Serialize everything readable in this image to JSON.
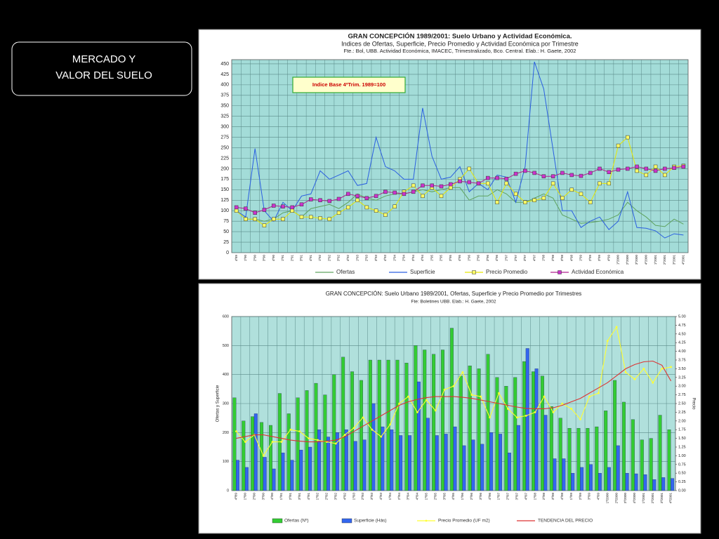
{
  "heading": {
    "lines": [
      "MERCADO Y",
      "VALOR DEL SUELO"
    ]
  },
  "chart_data": [
    {
      "type": "line",
      "title": "GRAN CONCEPCIÓN 1989/2001: Suelo Urbano y Actividad Económica.",
      "subtitle": "Indices de Ofertas, Superficie, Precio Promedio y Actividad Económica por Trimestre",
      "source": "Fte.: Bol, UBB.  Actividad Económica, IMACEC, Trimestralizado, Bco. Central.  Elab.: H. Gaete, 2002",
      "annotation": "Indice Base 4ºTrim. 1989=100",
      "categories": [
        "4º89",
        "1º90",
        "2º90",
        "3º90",
        "4º90",
        "1º91",
        "2º91",
        "3º91",
        "4º91",
        "1º92",
        "2º92",
        "3º92",
        "4º92",
        "1º93",
        "2º93",
        "3º93",
        "4º93",
        "1º94",
        "2º94",
        "3º94",
        "4º94",
        "1º95",
        "2º95",
        "3º95",
        "4º95",
        "1º96",
        "2º96",
        "3º96",
        "4º96",
        "1º97",
        "2º97",
        "3º97",
        "4º97",
        "1º98",
        "2º98",
        "3º98",
        "4º98",
        "1º99",
        "2º99",
        "3º99",
        "4º99",
        "1º2000",
        "2º2000",
        "3º2000",
        "4º2000",
        "1º2001",
        "2º2001",
        "3º2001",
        "4º2001"
      ],
      "ylim": [
        0,
        460
      ],
      "yticks": [
        0,
        25,
        50,
        75,
        100,
        125,
        150,
        175,
        200,
        225,
        250,
        275,
        300,
        325,
        350,
        375,
        400,
        425,
        450
      ],
      "grid": true,
      "legend": "bottom",
      "series": [
        {
          "name": "Ofertas",
          "color": "#5fa35f",
          "values": [
            100,
            80,
            80,
            75,
            80,
            95,
            100,
            85,
            105,
            110,
            115,
            105,
            120,
            140,
            130,
            125,
            135,
            140,
            140,
            145,
            150,
            145,
            150,
            155,
            155,
            125,
            135,
            135,
            150,
            140,
            120,
            120,
            130,
            140,
            130,
            90,
            80,
            70,
            72,
            75,
            80,
            90,
            120,
            100,
            85,
            65,
            62,
            80,
            68
          ]
        },
        {
          "name": "Superficie",
          "color": "#2a5ee0",
          "values": [
            100,
            85,
            248,
            100,
            75,
            120,
            100,
            135,
            140,
            195,
            175,
            185,
            195,
            160,
            165,
            275,
            205,
            195,
            175,
            175,
            345,
            230,
            175,
            180,
            205,
            145,
            165,
            150,
            185,
            180,
            120,
            205,
            455,
            390,
            245,
            100,
            100,
            60,
            75,
            85,
            55,
            75,
            145,
            60,
            58,
            52,
            35,
            45,
            42
          ]
        },
        {
          "name": "Precio Promedio",
          "color": "#e8e800",
          "marker": "square",
          "marker_fill": "#ffff66",
          "values": [
            100,
            80,
            80,
            65,
            80,
            80,
            100,
            85,
            85,
            82,
            80,
            95,
            108,
            125,
            108,
            100,
            90,
            110,
            145,
            160,
            135,
            155,
            135,
            155,
            175,
            200,
            165,
            165,
            120,
            165,
            140,
            120,
            125,
            130,
            165,
            130,
            150,
            140,
            120,
            165,
            165,
            255,
            275,
            195,
            185,
            205,
            185,
            205,
            207
          ]
        },
        {
          "name": "Actividad Económica",
          "color": "#b0208f",
          "marker": "square",
          "marker_fill": "#cc33cc",
          "values": [
            108,
            105,
            95,
            102,
            112,
            110,
            108,
            115,
            127,
            125,
            123,
            128,
            140,
            135,
            130,
            135,
            145,
            143,
            140,
            145,
            160,
            160,
            158,
            163,
            170,
            168,
            165,
            178,
            178,
            176,
            188,
            195,
            190,
            182,
            182,
            190,
            185,
            183,
            190,
            200,
            192,
            198,
            200,
            205,
            200,
            195,
            200,
            202,
            205
          ]
        }
      ]
    },
    {
      "type": "bar",
      "title": "GRAN CONCEPCIÓN: Suelo Urbano 1989/2001, Ofertas, Superficie y Precio Promedio por Trimestres",
      "subtitle": "Fte: Boletines UBB. Elab.: H. Gaete, 2002",
      "ylabel": "Ofertas y Superficie",
      "y2label": "Precio",
      "categories": [
        "4º/89",
        "1º/90",
        "2º/90",
        "3º/90",
        "4º/90",
        "1º/91",
        "2º/91",
        "3º/91",
        "4º/91",
        "1º/92",
        "2º/92",
        "3º/92",
        "4º/92",
        "1º/93",
        "2º/93",
        "3º/93",
        "4º/93",
        "1º/94",
        "2º/94",
        "3º/94",
        "4º/94",
        "1º/95",
        "2º/95",
        "3º/95",
        "4º/95",
        "1º/96",
        "2º/96",
        "3º/96",
        "4º/96",
        "1º/97",
        "2º/97",
        "3º/97",
        "4º/97",
        "1º/98",
        "2º/98",
        "3º/98",
        "4º/98",
        "1º/99",
        "2º/99",
        "3º/99",
        "4º/99",
        "1º/2000",
        "2º/2000",
        "3º/2000",
        "4º/2000",
        "1º/2001",
        "2º/2001",
        "3º/2001",
        "4º/2001"
      ],
      "ylim": [
        0,
        600
      ],
      "yticks": [
        0,
        100,
        200,
        300,
        400,
        500,
        600
      ],
      "y2lim": [
        0,
        5
      ],
      "y2ticks": [
        {
          "value": 0,
          "label": "0.00"
        },
        {
          "value": 0.25,
          "label": "0.25"
        },
        {
          "value": 0.5,
          "label": "0.50"
        },
        {
          "value": 0.75,
          "label": "0.75"
        },
        {
          "value": 1,
          "label": "1.00"
        },
        {
          "value": 1.25,
          "label": "1.25"
        },
        {
          "value": 1.5,
          "label": "1.50"
        },
        {
          "value": 1.75,
          "label": "1.75"
        },
        {
          "value": 2,
          "label": "2.00"
        },
        {
          "value": 2.25,
          "label": "2.25"
        },
        {
          "value": 2.5,
          "label": "2.50"
        },
        {
          "value": 2.75,
          "label": "2.75"
        },
        {
          "value": 3,
          "label": "3.00"
        },
        {
          "value": 3.25,
          "label": "3.25"
        },
        {
          "value": 3.5,
          "label": "3.50"
        },
        {
          "value": 3.75,
          "label": "3.75"
        },
        {
          "value": 4,
          "label": "4.00"
        },
        {
          "value": 4.25,
          "label": "4.25"
        },
        {
          "value": 4.5,
          "label": "4.50"
        },
        {
          "value": 4.75,
          "label": "4.75"
        },
        {
          "value": 5,
          "label": "5.00"
        }
      ],
      "grid": true,
      "legend": "bottom",
      "series": [
        {
          "name": "Ofertas (Nº)",
          "type": "bar",
          "color": "#33cc33",
          "values": [
            320,
            240,
            255,
            235,
            225,
            335,
            265,
            320,
            345,
            370,
            330,
            400,
            460,
            410,
            380,
            450,
            450,
            450,
            450,
            440,
            500,
            485,
            470,
            485,
            560,
            395,
            430,
            420,
            470,
            390,
            360,
            390,
            445,
            410,
            395,
            290,
            250,
            215,
            215,
            215,
            220,
            275,
            380,
            305,
            245,
            175,
            180,
            260,
            210
          ]
        },
        {
          "name": "Superficie (Hás)",
          "type": "bar",
          "color": "#3366ee",
          "values": [
            105,
            80,
            265,
            115,
            75,
            130,
            105,
            140,
            150,
            210,
            185,
            200,
            210,
            170,
            175,
            300,
            220,
            210,
            190,
            190,
            375,
            250,
            190,
            195,
            220,
            155,
            175,
            160,
            200,
            195,
            130,
            225,
            490,
            420,
            260,
            110,
            110,
            60,
            80,
            90,
            60,
            80,
            155,
            60,
            58,
            55,
            38,
            45,
            42
          ]
        },
        {
          "name": "Precio Promedio (UF m2)",
          "type": "line",
          "axis": "y2",
          "color": "#ffff33",
          "marker": "dot",
          "values": [
            1.7,
            1.4,
            1.6,
            1.0,
            1.4,
            1.4,
            1.75,
            1.7,
            1.5,
            1.45,
            1.4,
            1.35,
            1.6,
            1.8,
            2.1,
            1.75,
            1.55,
            1.9,
            2.5,
            2.7,
            2.25,
            2.6,
            2.3,
            2.9,
            3.0,
            3.4,
            2.75,
            2.7,
            2.1,
            2.8,
            2.35,
            2.1,
            2.15,
            2.25,
            2.7,
            2.25,
            2.5,
            2.35,
            2.05,
            2.7,
            2.8,
            4.3,
            4.7,
            3.4,
            3.2,
            3.5,
            3.1,
            3.5,
            3.55
          ]
        },
        {
          "name": "TENDENCIA DEL PRECIO",
          "type": "line",
          "axis": "y2",
          "color": "#dd3333",
          "values": [
            1.5,
            1.55,
            1.6,
            1.6,
            1.55,
            1.5,
            1.45,
            1.42,
            1.4,
            1.4,
            1.42,
            1.45,
            1.55,
            1.7,
            1.85,
            2.0,
            2.15,
            2.3,
            2.45,
            2.55,
            2.62,
            2.67,
            2.7,
            2.7,
            2.7,
            2.68,
            2.65,
            2.6,
            2.55,
            2.5,
            2.45,
            2.4,
            2.36,
            2.35,
            2.35,
            2.38,
            2.45,
            2.55,
            2.65,
            2.8,
            2.95,
            3.1,
            3.3,
            3.5,
            3.62,
            3.7,
            3.72,
            3.6,
            3.15
          ]
        }
      ]
    }
  ]
}
